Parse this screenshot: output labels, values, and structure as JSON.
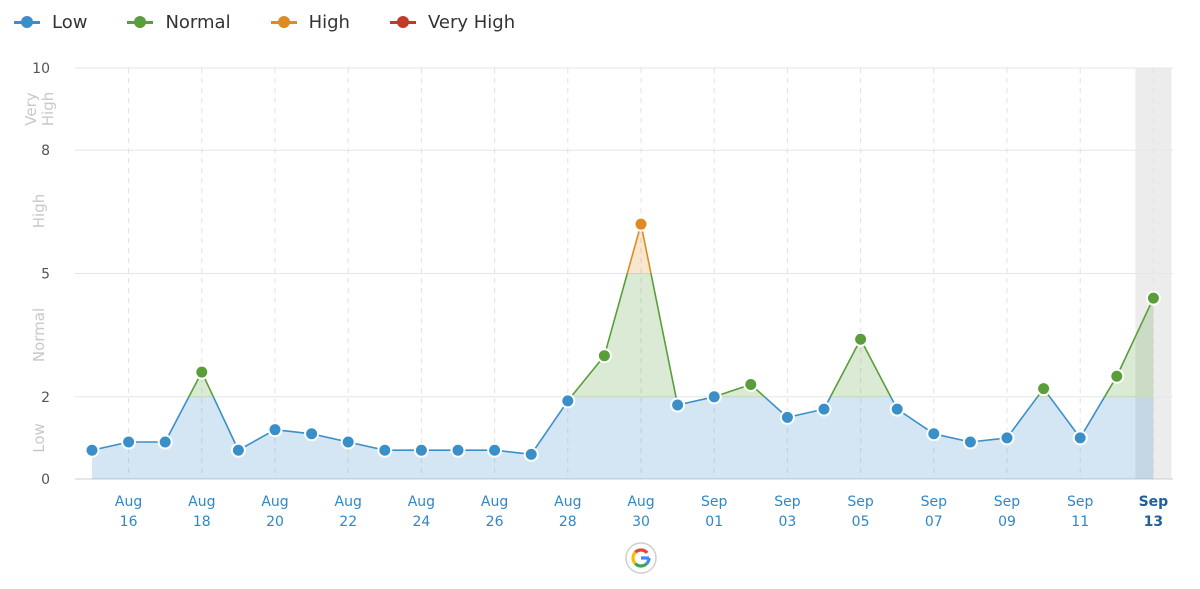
{
  "legend": [
    {
      "label": "Low",
      "color": "#3b8fc9"
    },
    {
      "label": "Normal",
      "color": "#5a9e3a"
    },
    {
      "label": "High",
      "color": "#e08b21"
    },
    {
      "label": "Very High",
      "color": "#c0392b"
    }
  ],
  "chart_data": {
    "type": "line",
    "x": [
      "Aug 15",
      "Aug 16",
      "Aug 17",
      "Aug 18",
      "Aug 19",
      "Aug 20",
      "Aug 21",
      "Aug 22",
      "Aug 23",
      "Aug 24",
      "Aug 25",
      "Aug 26",
      "Aug 27",
      "Aug 28",
      "Aug 29",
      "Aug 30",
      "Aug 31",
      "Sep 01",
      "Sep 02",
      "Sep 03",
      "Sep 04",
      "Sep 05",
      "Sep 06",
      "Sep 07",
      "Sep 08",
      "Sep 09",
      "Sep 10",
      "Sep 11",
      "Sep 12",
      "Sep 13"
    ],
    "values": [
      0.7,
      0.9,
      0.9,
      2.6,
      0.7,
      1.2,
      1.1,
      0.9,
      0.7,
      0.7,
      0.7,
      0.7,
      0.6,
      1.9,
      3.0,
      6.2,
      1.8,
      2.0,
      2.3,
      1.5,
      1.7,
      3.4,
      1.7,
      1.1,
      0.9,
      1.0,
      2.2,
      1.0,
      2.5,
      4.4
    ],
    "ylim": [
      0,
      10
    ],
    "yticks": [
      "0",
      "2",
      "5",
      "8",
      "10"
    ],
    "ytick_values": [
      0,
      2,
      5,
      8,
      10
    ],
    "bands": [
      {
        "label": "Low",
        "from": 0,
        "to": 2,
        "color": "#3b8fc9"
      },
      {
        "label": "Normal",
        "from": 2,
        "to": 5,
        "color": "#5a9e3a"
      },
      {
        "label": "High",
        "from": 5,
        "to": 8,
        "color": "#e08b21"
      },
      {
        "label": "Very High",
        "from": 8,
        "to": 10,
        "color": "#c0392b"
      }
    ],
    "band_labels": [
      "Low",
      "Normal",
      "High",
      "Very High"
    ],
    "xtick_labels": [
      {
        "index": 1,
        "line1": "Aug",
        "line2": "16"
      },
      {
        "index": 3,
        "line1": "Aug",
        "line2": "18"
      },
      {
        "index": 5,
        "line1": "Aug",
        "line2": "20"
      },
      {
        "index": 7,
        "line1": "Aug",
        "line2": "22"
      },
      {
        "index": 9,
        "line1": "Aug",
        "line2": "24"
      },
      {
        "index": 11,
        "line1": "Aug",
        "line2": "26"
      },
      {
        "index": 13,
        "line1": "Aug",
        "line2": "28"
      },
      {
        "index": 15,
        "line1": "Aug",
        "line2": "30"
      },
      {
        "index": 17,
        "line1": "Sep",
        "line2": "01"
      },
      {
        "index": 19,
        "line1": "Sep",
        "line2": "03"
      },
      {
        "index": 21,
        "line1": "Sep",
        "line2": "05"
      },
      {
        "index": 23,
        "line1": "Sep",
        "line2": "07"
      },
      {
        "index": 25,
        "line1": "Sep",
        "line2": "09"
      },
      {
        "index": 27,
        "line1": "Sep",
        "line2": "11"
      },
      {
        "index": 29,
        "line1": "Sep",
        "line2": "13"
      }
    ],
    "selected_index": 29,
    "annotation": {
      "index": 15,
      "icon": "google-g-icon"
    },
    "grid": true,
    "legend_position": "top-left"
  }
}
